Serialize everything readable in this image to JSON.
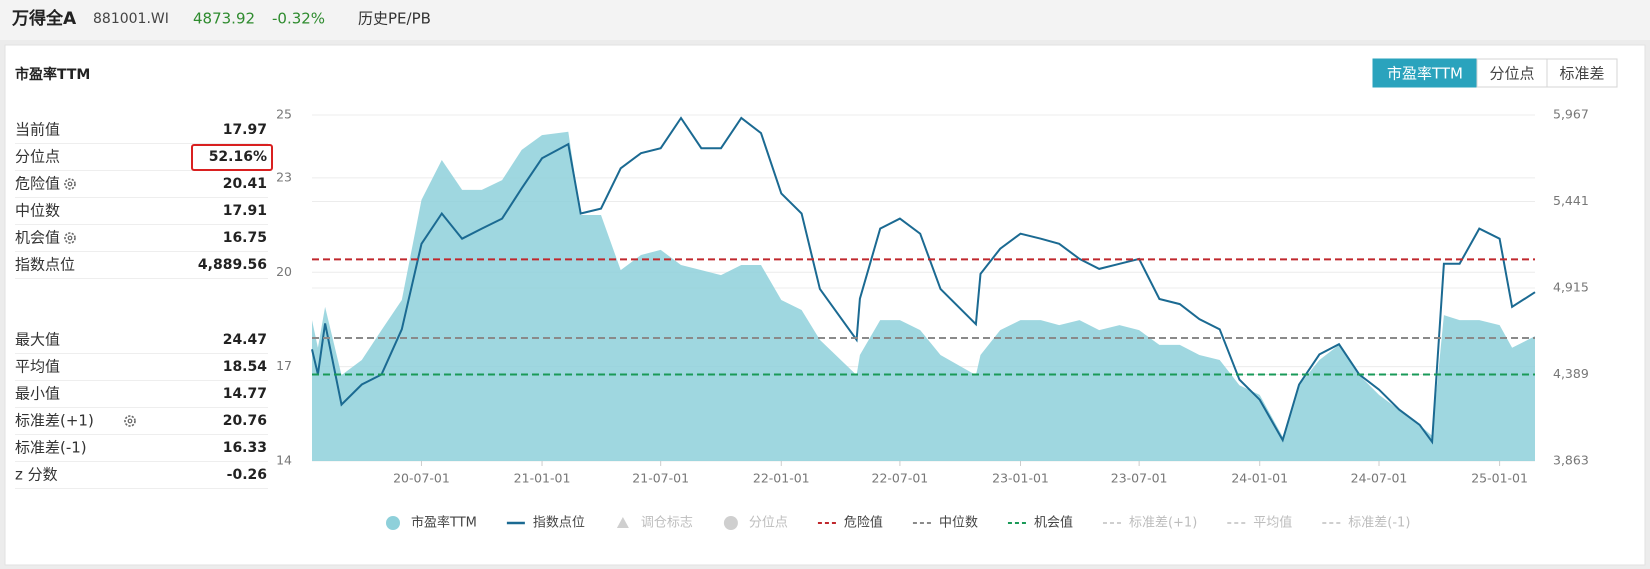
{
  "header": {
    "name": "万得全A",
    "code": "881001.WI",
    "price": "4873.92",
    "change": "-0.32%",
    "view": "历史PE/PB"
  },
  "panel": {
    "title": "市盈率TTM",
    "tabs": [
      {
        "label": "市盈率TTM",
        "active": true
      },
      {
        "label": "分位点",
        "active": false
      },
      {
        "label": "标准差",
        "active": false
      }
    ],
    "stats": [
      [
        {
          "label": "当前值",
          "value": "17.97"
        },
        {
          "label": "分位点",
          "value": "52.16%",
          "highlight": true
        },
        {
          "label": "危险值",
          "value": "20.41",
          "gear": true
        },
        {
          "label": "中位数",
          "value": "17.91"
        },
        {
          "label": "机会值",
          "value": "16.75",
          "gear": true
        },
        {
          "label": "指数点位",
          "value": "4,889.56"
        }
      ],
      [
        {
          "label": "最大值",
          "value": "24.47"
        },
        {
          "label": "平均值",
          "value": "18.54"
        },
        {
          "label": "最小值",
          "value": "14.77"
        },
        {
          "label": "标准差(+1)",
          "value": "20.76",
          "gear": true
        },
        {
          "label": "标准差(-1)",
          "value": "16.33"
        },
        {
          "label": "z 分数",
          "value": "-0.26"
        }
      ]
    ]
  },
  "chart_data": {
    "type": "line",
    "x": [
      "20-01-16",
      "20-01-25",
      "20-02-05",
      "20-03-01",
      "20-04-01",
      "20-05-01",
      "20-06-01",
      "20-07-01",
      "20-08-01",
      "20-09-01",
      "20-10-01",
      "20-11-01",
      "20-12-01",
      "21-01-01",
      "21-02-10",
      "21-03-01",
      "21-04-01",
      "21-05-01",
      "21-06-01",
      "21-07-01",
      "21-08-01",
      "21-09-01",
      "21-10-01",
      "21-11-01",
      "21-12-01",
      "22-01-01",
      "22-02-01",
      "22-03-01",
      "22-04-26",
      "22-05-01",
      "22-06-01",
      "22-07-01",
      "22-08-01",
      "22-09-01",
      "22-10-25",
      "22-11-01",
      "22-12-01",
      "23-01-01",
      "23-02-01",
      "23-03-01",
      "23-04-01",
      "23-05-01",
      "23-06-01",
      "23-07-01",
      "23-08-01",
      "23-09-01",
      "23-10-01",
      "23-11-01",
      "23-12-01",
      "24-01-01",
      "24-02-05",
      "24-03-01",
      "24-04-01",
      "24-05-01",
      "24-06-01",
      "24-07-01",
      "24-08-01",
      "24-09-01",
      "24-09-20",
      "24-10-08",
      "24-11-01",
      "24-12-01",
      "25-01-01",
      "25-01-20",
      "25-02-24"
    ],
    "series": [
      {
        "name": "市盈率TTM",
        "kind": "area",
        "color": "#8ed0da",
        "values": [
          18.48,
          17.6,
          18.9,
          16.73,
          17.21,
          18.16,
          19.12,
          22.3,
          23.57,
          22.62,
          22.62,
          22.93,
          23.89,
          24.36,
          24.47,
          21.82,
          21.82,
          20.07,
          20.55,
          20.71,
          20.23,
          20.07,
          19.91,
          20.23,
          20.23,
          19.12,
          18.8,
          17.85,
          16.73,
          17.37,
          18.48,
          18.48,
          18.16,
          17.37,
          16.73,
          17.37,
          18.16,
          18.48,
          18.48,
          18.32,
          18.48,
          18.16,
          18.32,
          18.16,
          17.69,
          17.69,
          17.37,
          17.21,
          16.41,
          16.1,
          14.77,
          16.41,
          17.21,
          17.69,
          16.73,
          16.1,
          15.62,
          15.14,
          14.8,
          18.64,
          18.48,
          18.48,
          18.32,
          17.6,
          17.97
        ]
      },
      {
        "name": "指数点位",
        "kind": "line",
        "axis": "y2",
        "color": "#1b6a92",
        "values": [
          4542,
          4390,
          4700,
          4206,
          4328,
          4389,
          4664,
          5184,
          5368,
          5215,
          5276,
          5337,
          5521,
          5704,
          5790,
          5368,
          5398,
          5643,
          5735,
          5765,
          5949,
          5765,
          5765,
          5949,
          5857,
          5490,
          5368,
          4909,
          4600,
          4850,
          5276,
          5337,
          5245,
          4909,
          4695,
          5001,
          5154,
          5245,
          5215,
          5184,
          5092,
          5031,
          5062,
          5092,
          4848,
          4817,
          4725,
          4664,
          4358,
          4236,
          3990,
          4328,
          4511,
          4573,
          4389,
          4297,
          4175,
          4083,
          3980,
          5062,
          5062,
          5276,
          5215,
          4800,
          4889.56
        ]
      }
    ],
    "overlays": [
      {
        "name": "调仓标志",
        "marker": "triangle",
        "visible": false
      },
      {
        "name": "分位点",
        "marker": "circle",
        "visible": false
      },
      {
        "name": "危险值",
        "marker": "dash",
        "visible": true,
        "value": 20.41,
        "color": "#c0282d"
      },
      {
        "name": "中位数",
        "marker": "dash",
        "visible": true,
        "value": 17.91,
        "color": "#8a8a8a"
      },
      {
        "name": "机会值",
        "marker": "dash",
        "visible": true,
        "value": 16.75,
        "color": "#1a9a58"
      },
      {
        "name": "标准差(+1)",
        "marker": "dash",
        "visible": false
      },
      {
        "name": "平均值",
        "marker": "dash",
        "visible": false
      },
      {
        "name": "标准差(-1)",
        "marker": "dash",
        "visible": false
      }
    ],
    "xlim": [
      "20-01-16",
      "25-02-24"
    ],
    "xticks": [
      "20-07-01",
      "21-01-01",
      "21-07-01",
      "22-01-01",
      "22-07-01",
      "23-01-01",
      "23-07-01",
      "24-01-01",
      "24-07-01",
      "25-01-01"
    ],
    "ylim": [
      14,
      25
    ],
    "yticks": [
      14,
      17,
      20,
      23,
      25
    ],
    "y2lim": [
      3863,
      5967
    ],
    "y2ticks": [
      {
        "value": 3863,
        "label": "3,863"
      },
      {
        "value": 4389,
        "label": "4,389"
      },
      {
        "value": 4915,
        "label": "4,915"
      },
      {
        "value": 5441,
        "label": "5,441"
      },
      {
        "value": 5967,
        "label": "5,967"
      }
    ],
    "grid": true
  }
}
